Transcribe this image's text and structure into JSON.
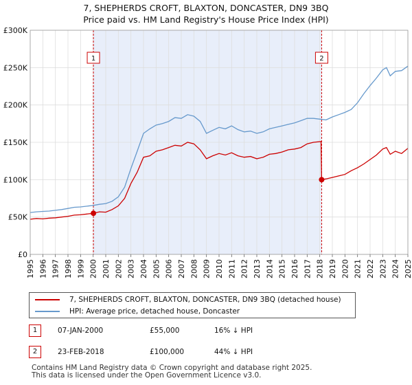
{
  "title_line1": "7, SHEPHERDS CROFT, BLAXTON, DONCASTER, DN9 3BQ",
  "title_line2": "Price paid vs. HM Land Registry's House Price Index (HPI)",
  "chart_data": {
    "type": "line",
    "xlim": [
      1995,
      2025
    ],
    "ylim": [
      0,
      300000
    ],
    "ytick_values": [
      0,
      50000,
      100000,
      150000,
      200000,
      250000,
      300000
    ],
    "ytick_labels": [
      "£0",
      "£50K",
      "£100K",
      "£150K",
      "£200K",
      "£250K",
      "£300K"
    ],
    "xtick_labels": [
      "1995",
      "1996",
      "1997",
      "1998",
      "1999",
      "2000",
      "2001",
      "2002",
      "2003",
      "2004",
      "2005",
      "2006",
      "2007",
      "2008",
      "2009",
      "2010",
      "2011",
      "2012",
      "2013",
      "2014",
      "2015",
      "2016",
      "2017",
      "2018",
      "2019",
      "2020",
      "2021",
      "2022",
      "2023",
      "2024",
      "2025"
    ],
    "shaded_period": [
      2000.02,
      2018.15
    ],
    "series": [
      {
        "name": "7, SHEPHERDS CROFT, BLAXTON, DONCASTER, DN9 3BQ (detached house)",
        "color": "#cc0000",
        "x": [
          1995.0,
          1995.5,
          1996.0,
          1996.5,
          1997.0,
          1997.5,
          1998.0,
          1998.5,
          1999.0,
          1999.5,
          2000.02,
          2000.5,
          2001.0,
          2001.5,
          2002.0,
          2002.5,
          2003.0,
          2003.5,
          2004.0,
          2004.5,
          2005.0,
          2005.5,
          2006.0,
          2006.5,
          2007.0,
          2007.5,
          2008.0,
          2008.5,
          2009.0,
          2009.5,
          2010.0,
          2010.5,
          2011.0,
          2011.5,
          2012.0,
          2012.5,
          2013.0,
          2013.5,
          2014.0,
          2014.5,
          2015.0,
          2015.5,
          2016.0,
          2016.5,
          2017.0,
          2017.5,
          2018.1,
          2018.15,
          2018.5,
          2019.0,
          2019.5,
          2020.0,
          2020.5,
          2021.0,
          2021.5,
          2022.0,
          2022.5,
          2023.0,
          2023.3,
          2023.6,
          2024.0,
          2024.5,
          2025.0
        ],
        "y": [
          47000,
          48000,
          47500,
          48500,
          49000,
          50000,
          51000,
          52500,
          53000,
          54000,
          55000,
          57000,
          56500,
          60000,
          65000,
          75000,
          95000,
          110000,
          130000,
          132000,
          138000,
          140000,
          143000,
          146000,
          145000,
          150000,
          148000,
          140000,
          128000,
          132000,
          135000,
          133000,
          136000,
          132000,
          130000,
          131000,
          128000,
          130000,
          134000,
          135000,
          137000,
          140000,
          141000,
          143000,
          148000,
          150000,
          151000,
          100000,
          101000,
          103000,
          105000,
          107000,
          112000,
          116000,
          121000,
          127000,
          133000,
          141000,
          143000,
          134000,
          138000,
          135000,
          142000
        ]
      },
      {
        "name": "HPI: Average price, detached house, Doncaster",
        "color": "#6699cc",
        "x": [
          1995.0,
          1995.5,
          1996.0,
          1996.5,
          1997.0,
          1997.5,
          1998.0,
          1998.5,
          1999.0,
          1999.5,
          2000.0,
          2000.5,
          2001.0,
          2001.5,
          2002.0,
          2002.5,
          2003.0,
          2003.5,
          2004.0,
          2004.5,
          2005.0,
          2005.5,
          2006.0,
          2006.5,
          2007.0,
          2007.5,
          2008.0,
          2008.5,
          2009.0,
          2009.5,
          2010.0,
          2010.5,
          2011.0,
          2011.5,
          2012.0,
          2012.5,
          2013.0,
          2013.5,
          2014.0,
          2014.5,
          2015.0,
          2015.5,
          2016.0,
          2016.5,
          2017.0,
          2017.5,
          2018.0,
          2018.5,
          2019.0,
          2019.5,
          2020.0,
          2020.5,
          2021.0,
          2021.5,
          2022.0,
          2022.5,
          2023.0,
          2023.3,
          2023.6,
          2024.0,
          2024.5,
          2025.0
        ],
        "y": [
          56000,
          57000,
          57500,
          58000,
          59000,
          60000,
          61500,
          63000,
          63500,
          64500,
          65500,
          67000,
          68000,
          71000,
          77000,
          90000,
          115000,
          138000,
          162000,
          168000,
          173000,
          175000,
          178000,
          183000,
          182000,
          187000,
          185000,
          178000,
          162000,
          166000,
          170000,
          168000,
          172000,
          167000,
          164000,
          165000,
          162000,
          164000,
          168000,
          170000,
          172000,
          174000,
          176000,
          179000,
          182000,
          182000,
          181000,
          180000,
          184000,
          187000,
          190000,
          194000,
          203000,
          215000,
          226000,
          236000,
          247000,
          250000,
          239000,
          245000,
          246000,
          252000
        ]
      }
    ],
    "annotations": [
      {
        "label": "1",
        "x": 2000.02,
        "y": 55000
      },
      {
        "label": "2",
        "x": 2018.15,
        "y": 100000
      }
    ]
  },
  "legend": {
    "items": [
      {
        "label": "7, SHEPHERDS CROFT, BLAXTON, DONCASTER, DN9 3BQ (detached house)",
        "color": "#cc0000"
      },
      {
        "label": "HPI: Average price, detached house, Doncaster",
        "color": "#6699cc"
      }
    ]
  },
  "transactions": [
    {
      "num": "1",
      "date": "07-JAN-2000",
      "price": "£55,000",
      "hpi": "16% ↓ HPI"
    },
    {
      "num": "2",
      "date": "23-FEB-2018",
      "price": "£100,000",
      "hpi": "44% ↓ HPI"
    }
  ],
  "footer_line1": "Contains HM Land Registry data © Crown copyright and database right 2025.",
  "footer_line2": "This data is licensed under the Open Government Licence v3.0."
}
